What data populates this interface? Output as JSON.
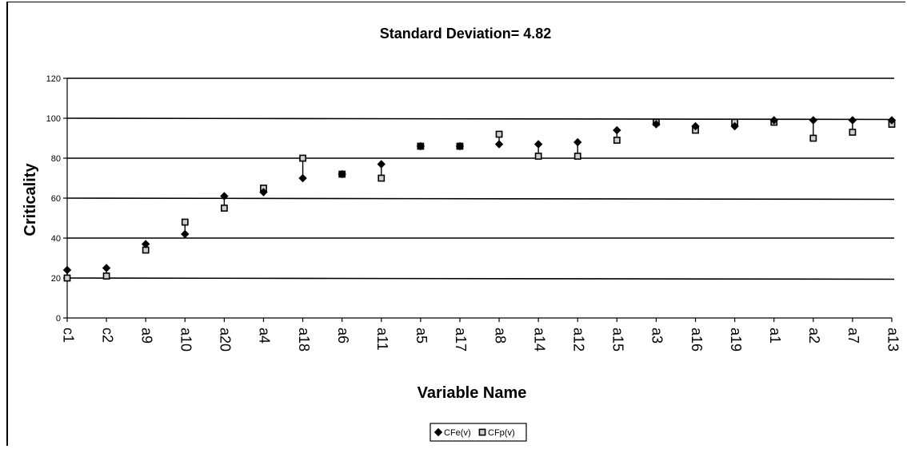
{
  "chart_data": {
    "type": "scatter",
    "title": "Standard Deviation= 4.82",
    "xlabel": "Variable Name",
    "ylabel": "Criticality",
    "ylim": [
      0,
      120
    ],
    "yticks": [
      0,
      20,
      40,
      60,
      80,
      100,
      120
    ],
    "grid": true,
    "legend_position": "bottom",
    "categories": [
      "c1",
      "c2",
      "a9",
      "a10",
      "a20",
      "a4",
      "a18",
      "a6",
      "a11",
      "a5",
      "a17",
      "a8",
      "a14",
      "a12",
      "a15",
      "a3",
      "a16",
      "a19",
      "a1",
      "a2",
      "a7",
      "a13"
    ],
    "series": [
      {
        "name": "CFe(v)",
        "marker": "diamond",
        "values": [
          24,
          25,
          37,
          42,
          61,
          63,
          70,
          72,
          77,
          86,
          86,
          87,
          87,
          88,
          94,
          97,
          96,
          96,
          99,
          99,
          99,
          99
        ]
      },
      {
        "name": "CFp(v)",
        "marker": "square",
        "values": [
          20,
          21,
          34,
          48,
          55,
          65,
          80,
          72,
          70,
          86,
          86,
          92,
          81,
          81,
          89,
          98,
          94,
          98,
          98,
          90,
          93,
          97
        ]
      }
    ]
  }
}
